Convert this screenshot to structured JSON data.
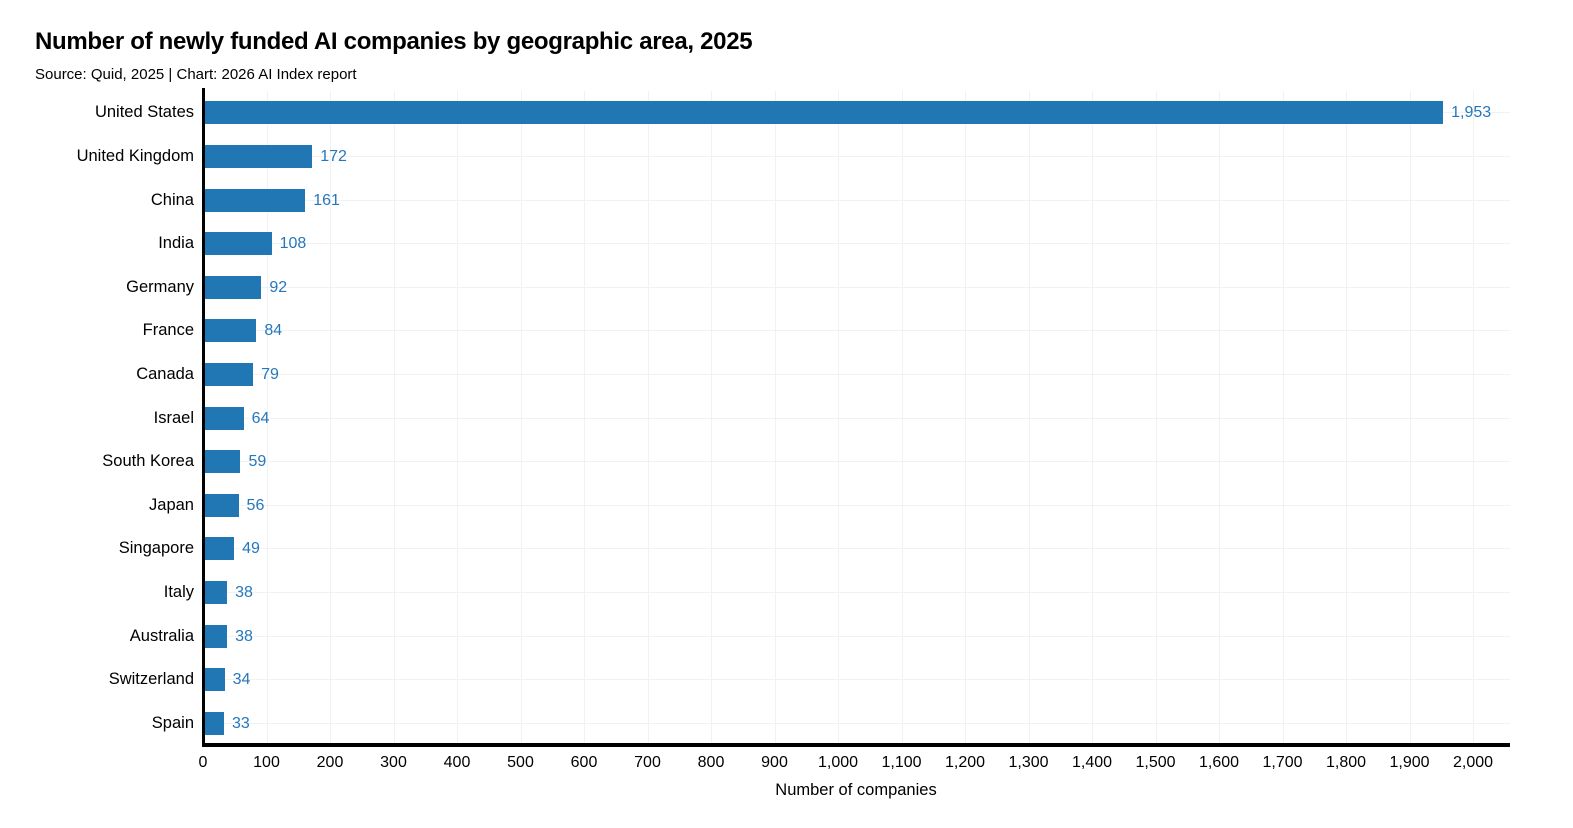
{
  "page": {
    "background": "#ffffff"
  },
  "header": {
    "title": "Number of newly funded AI companies by geographic area, 2025",
    "subtitle": "Source: Quid, 2025 | Chart: 2026 AI Index report"
  },
  "chart_data": {
    "type": "bar",
    "orientation": "horizontal",
    "title": "Number of newly funded AI companies by geographic area, 2025",
    "subtitle": "Source: Quid, 2025 | Chart: 2026 AI Index report",
    "xlabel": "Number of companies",
    "ylabel": "",
    "categories": [
      "United States",
      "United Kingdom",
      "China",
      "India",
      "Germany",
      "France",
      "Canada",
      "Israel",
      "South Korea",
      "Japan",
      "Singapore",
      "Italy",
      "Australia",
      "Switzerland",
      "Spain"
    ],
    "values": [
      1953,
      172,
      161,
      108,
      92,
      84,
      79,
      64,
      59,
      56,
      49,
      38,
      38,
      34,
      33
    ],
    "value_labels": [
      "1,953",
      "172",
      "161",
      "108",
      "92",
      "84",
      "79",
      "64",
      "59",
      "56",
      "49",
      "38",
      "38",
      "34",
      "33"
    ],
    "xlim": [
      0,
      2000
    ],
    "x_ticks": [
      0,
      100,
      200,
      300,
      400,
      500,
      600,
      700,
      800,
      900,
      1000,
      1100,
      1200,
      1300,
      1400,
      1500,
      1600,
      1700,
      1800,
      1900,
      2000
    ],
    "x_tick_labels": [
      "0",
      "100",
      "200",
      "300",
      "400",
      "500",
      "600",
      "700",
      "800",
      "900",
      "1,000",
      "1,100",
      "1,200",
      "1,300",
      "1,400",
      "1,500",
      "1,600",
      "1,700",
      "1,800",
      "1,900",
      "2,000"
    ],
    "grid": "both-light",
    "legend": "none",
    "colors": {
      "bar": "#2077b4",
      "value_label": "#2577bd",
      "grid": "#f2f2f2",
      "axis": "#000000",
      "text": "#000000"
    }
  }
}
